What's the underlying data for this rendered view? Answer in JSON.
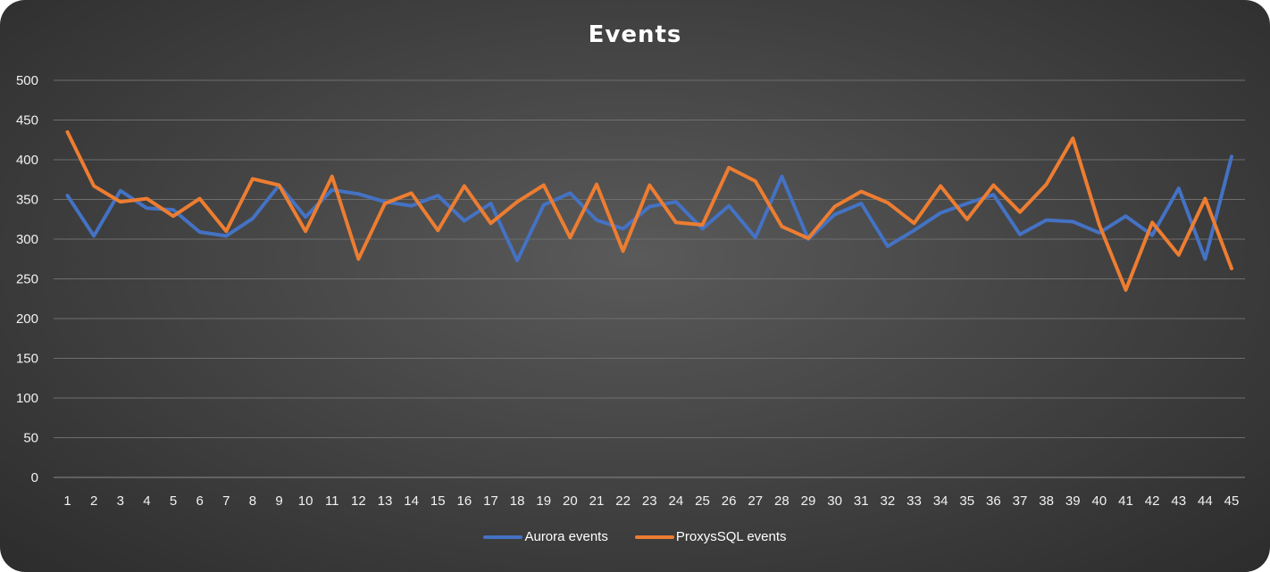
{
  "chart_data": {
    "type": "line",
    "title": "Events",
    "xlabel": "",
    "ylabel": "",
    "x": [
      1,
      2,
      3,
      4,
      5,
      6,
      7,
      8,
      9,
      10,
      11,
      12,
      13,
      14,
      15,
      16,
      17,
      18,
      19,
      20,
      21,
      22,
      23,
      24,
      25,
      26,
      27,
      28,
      29,
      30,
      31,
      32,
      33,
      34,
      35,
      36,
      37,
      38,
      39,
      40,
      41,
      42,
      43,
      44,
      45
    ],
    "ylim": [
      0,
      500
    ],
    "yticks": [
      0,
      50,
      100,
      150,
      200,
      250,
      300,
      350,
      400,
      450,
      500
    ],
    "grid": true,
    "legend_position": "bottom",
    "series": [
      {
        "name": "Aurora events",
        "color": "#4472C4",
        "values": [
          355,
          304,
          361,
          339,
          337,
          309,
          304,
          326,
          368,
          328,
          362,
          357,
          347,
          342,
          355,
          323,
          345,
          273,
          343,
          358,
          324,
          313,
          341,
          347,
          313,
          342,
          302,
          379,
          300,
          331,
          345,
          291,
          311,
          333,
          345,
          356,
          306,
          324,
          322,
          308,
          329,
          305,
          364,
          275,
          404
        ]
      },
      {
        "name": "ProxysSQL events",
        "color": "#ED7D31",
        "values": [
          435,
          367,
          347,
          351,
          329,
          351,
          310,
          376,
          368,
          310,
          379,
          275,
          345,
          358,
          311,
          367,
          320,
          347,
          368,
          302,
          369,
          285,
          368,
          321,
          318,
          390,
          373,
          316,
          301,
          341,
          360,
          346,
          320,
          367,
          325,
          368,
          334,
          369,
          427,
          318,
          236,
          321,
          280,
          351,
          263
        ]
      }
    ]
  }
}
